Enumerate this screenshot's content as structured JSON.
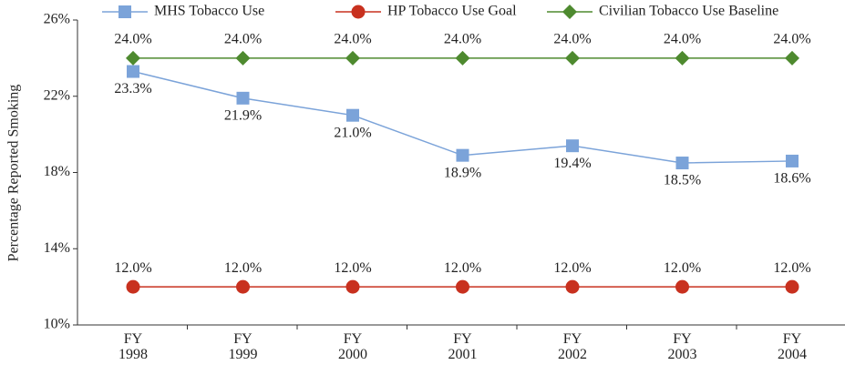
{
  "chart_data": {
    "type": "line",
    "y_label": "Percentage Reported Smoking",
    "categories": [
      "FY 1998",
      "FY 1999",
      "FY 2000",
      "FY 2001",
      "FY 2002",
      "FY 2003",
      "FY 2004"
    ],
    "ylim": [
      10,
      26
    ],
    "yticks": [
      {
        "value": 10,
        "label": "10%"
      },
      {
        "value": 14,
        "label": "14%"
      },
      {
        "value": 18,
        "label": "18%"
      },
      {
        "value": 22,
        "label": "22%"
      },
      {
        "value": 26,
        "label": "26%"
      }
    ],
    "legend": "top",
    "series": [
      {
        "name": "MHS Tobacco  Use",
        "color": "#7ba3d9",
        "marker": "square",
        "values": [
          23.3,
          21.9,
          21.0,
          18.9,
          19.4,
          18.5,
          18.6
        ],
        "value_labels": [
          "23.3%",
          "21.9%",
          "21.0%",
          "18.9%",
          "19.4%",
          "18.5%",
          "18.6%"
        ]
      },
      {
        "name": "HP Tobacco Use Goal",
        "color": "#c8311f",
        "marker": "circle",
        "values": [
          12,
          12,
          12,
          12,
          12,
          12,
          12
        ],
        "value_labels": [
          "12.0%",
          "12.0%",
          "12.0%",
          "12.0%",
          "12.0%",
          "12.0%",
          "12.0%"
        ]
      },
      {
        "name": "Civilian Tobacco Use Baseline",
        "color": "#4e8a2f",
        "marker": "diamond",
        "values": [
          24,
          24,
          24,
          24,
          24,
          24,
          24
        ],
        "value_labels": [
          "24.0%",
          "24.0%",
          "24.0%",
          "24.0%",
          "24.0%",
          "24.0%",
          "24.0%"
        ]
      }
    ]
  }
}
